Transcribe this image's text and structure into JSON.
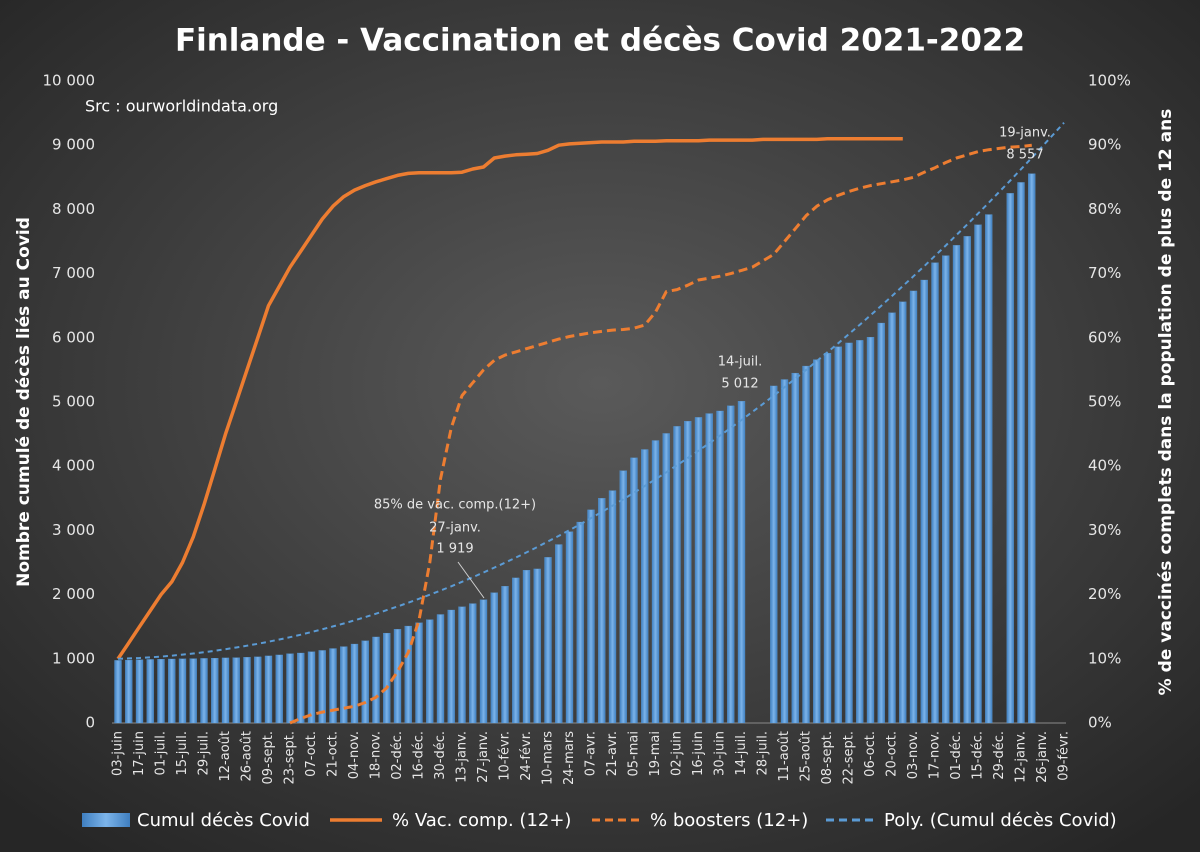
{
  "chart_data": {
    "type": "bar",
    "title": "Finlande - Vaccination et décès Covid 2021-2022",
    "subtitle": "Src : ourworldindata.org",
    "y_label": "Nombre cumulé de décès liés au Covid",
    "y2_label": "% de vaccinés complets dans  la population de plus de 12 ans",
    "categories": [
      "03-juin",
      null,
      "17-juin",
      null,
      "01-juil.",
      null,
      "15-juil.",
      null,
      "29-juil.",
      null,
      "12-août",
      null,
      "26-août",
      null,
      "09-sept.",
      null,
      "23-sept.",
      null,
      "07-oct.",
      null,
      "21-oct.",
      null,
      "04-nov.",
      null,
      "18-nov.",
      null,
      "02-déc.",
      null,
      "16-déc.",
      null,
      "30-déc.",
      null,
      "13-janv.",
      null,
      "27-janv.",
      null,
      "10-févr.",
      null,
      "24-févr.",
      null,
      "10-mars",
      null,
      "24-mars",
      null,
      "07-avr.",
      null,
      "21-avr.",
      null,
      "05-mai",
      null,
      "19-mai",
      null,
      "02-juin",
      null,
      "16-juin",
      null,
      "30-juin",
      null,
      "14-juil.",
      null,
      "28-juil.",
      null,
      "11-août",
      null,
      "25-août",
      null,
      "08-sept.",
      null,
      "22-sept.",
      null,
      "06-oct.",
      null,
      "20-oct.",
      null,
      "03-nov.",
      null,
      "17-nov.",
      null,
      "01-déc.",
      null,
      "15-déc.",
      null,
      "29-déc.",
      null,
      "12-janv.",
      null,
      "26-janv.",
      null,
      "09-févr."
    ],
    "series": [
      {
        "name": "Cumul décès Covid",
        "type": "bar",
        "color": "#5b9bd5",
        "values": [
          975,
          980,
          985,
          990,
          994,
          997,
          1000,
          1003,
          1006,
          1010,
          1014,
          1018,
          1024,
          1030,
          1045,
          1060,
          1080,
          1090,
          1110,
          1130,
          1160,
          1190,
          1230,
          1280,
          1340,
          1400,
          1460,
          1510,
          1560,
          1610,
          1690,
          1760,
          1810,
          1860,
          1919,
          2030,
          2130,
          2260,
          2380,
          2400,
          2580,
          2780,
          2980,
          3130,
          3320,
          3500,
          3620,
          3930,
          4130,
          4260,
          4400,
          4510,
          4620,
          4700,
          4760,
          4820,
          4860,
          4940,
          5012,
          null,
          null,
          5250,
          5350,
          5450,
          5560,
          5660,
          5760,
          5860,
          5920,
          5960,
          6010,
          6230,
          6390,
          6560,
          6730,
          6900,
          7170,
          7280,
          7440,
          7580,
          7760,
          7920,
          null,
          8250,
          8420,
          8557,
          null,
          null,
          null
        ]
      },
      {
        "name": "% Vac. comp. (12+)",
        "type": "line",
        "color": "#ed7d31",
        "dashed": false,
        "axis": "y2",
        "values": [
          10,
          12.5,
          15,
          17.5,
          20,
          22,
          25,
          29,
          34,
          39.5,
          45,
          50,
          55,
          60,
          65,
          68,
          71,
          73.5,
          76,
          78.5,
          80.5,
          82,
          83,
          83.7,
          84.3,
          84.8,
          85.3,
          85.6,
          85.7,
          85.7,
          85.7,
          85.7,
          85.8,
          86.3,
          86.6,
          88,
          88.3,
          88.5,
          88.6,
          88.7,
          89.2,
          90,
          90.2,
          90.3,
          90.4,
          90.5,
          90.5,
          90.5,
          90.6,
          90.6,
          90.6,
          90.7,
          90.7,
          90.7,
          90.7,
          90.8,
          90.8,
          90.8,
          90.8,
          90.8,
          90.9,
          90.9,
          90.9,
          90.9,
          90.9,
          90.9,
          91,
          91,
          91,
          91,
          91,
          91,
          91,
          91,
          null,
          null,
          null,
          null,
          null,
          null,
          null,
          null,
          null,
          null,
          null,
          null,
          null,
          null,
          null
        ]
      },
      {
        "name": "% boosters (12+)",
        "type": "line",
        "color": "#ed7d31",
        "dashed": true,
        "axis": "y2",
        "values": [
          null,
          null,
          null,
          null,
          null,
          null,
          null,
          null,
          null,
          null,
          null,
          null,
          null,
          null,
          null,
          null,
          0,
          0.7,
          1.3,
          1.7,
          2,
          2.3,
          2.6,
          3.2,
          4,
          5.5,
          8,
          11,
          16,
          25,
          38,
          46,
          51,
          53,
          55,
          56.5,
          57.3,
          57.8,
          58.3,
          58.8,
          59.3,
          59.8,
          60.2,
          60.5,
          60.8,
          61,
          61.2,
          61.3,
          61.5,
          62,
          64,
          67.2,
          67.5,
          68.2,
          69,
          69.3,
          69.6,
          70,
          70.5,
          71,
          72,
          73,
          75,
          77,
          79,
          80.5,
          81.5,
          82.2,
          82.8,
          83.3,
          83.7,
          84,
          84.3,
          84.6,
          85,
          85.8,
          86.5,
          87.3,
          88,
          88.5,
          89,
          89.3,
          89.5,
          89.7,
          89.8,
          90,
          null,
          null,
          null
        ]
      },
      {
        "name": "Poly. (Cumul décès Covid)",
        "type": "line",
        "color": "#5b9bd5",
        "dashed": true,
        "values": [
          1000,
          1006,
          1013,
          1023,
          1035,
          1049,
          1065,
          1083,
          1103,
          1125,
          1149,
          1176,
          1204,
          1234,
          1267,
          1301,
          1337,
          1376,
          1417,
          1459,
          1504,
          1550,
          1599,
          1650,
          1703,
          1758,
          1815,
          1874,
          1935,
          1998,
          2063,
          2130,
          2200,
          2271,
          2345,
          2420,
          2497,
          2577,
          2658,
          2742,
          2828,
          2915,
          3005,
          3097,
          3191,
          3287,
          3384,
          3485,
          3587,
          3691,
          3797,
          3905,
          4016,
          4128,
          4242,
          4358,
          4477,
          4597,
          4720,
          4845,
          4971,
          5100,
          5231,
          5364,
          5499,
          5637,
          5775,
          5916,
          6059,
          6204,
          6351,
          6500,
          6651,
          6805,
          6960,
          7117,
          7277,
          7438,
          7602,
          7767,
          7935,
          8104,
          8277,
          8450,
          8626,
          8804,
          8985,
          9166,
          9350
        ]
      }
    ],
    "ylim": [
      0,
      10000
    ],
    "yticks": [
      {
        "value": 0,
        "label": "0"
      },
      {
        "value": 1000,
        "label": "1 000"
      },
      {
        "value": 2000,
        "label": "2 000"
      },
      {
        "value": 3000,
        "label": "3 000"
      },
      {
        "value": 4000,
        "label": "4 000"
      },
      {
        "value": 5000,
        "label": "5 000"
      },
      {
        "value": 6000,
        "label": "6 000"
      },
      {
        "value": 7000,
        "label": "7 000"
      },
      {
        "value": 8000,
        "label": "8 000"
      },
      {
        "value": 9000,
        "label": "9 000"
      },
      {
        "value": 10000,
        "label": "10 000"
      }
    ],
    "y2lim": [
      0,
      100
    ],
    "y2ticks": [
      {
        "value": 0,
        "label": "0%"
      },
      {
        "value": 10,
        "label": "10%"
      },
      {
        "value": 20,
        "label": "20%"
      },
      {
        "value": 30,
        "label": "30%"
      },
      {
        "value": 40,
        "label": "40%"
      },
      {
        "value": 50,
        "label": "50%"
      },
      {
        "value": 60,
        "label": "60%"
      },
      {
        "value": 70,
        "label": "70%"
      },
      {
        "value": 80,
        "label": "80%"
      },
      {
        "value": 90,
        "label": "90%"
      },
      {
        "value": 100,
        "label": "100%"
      }
    ],
    "grid": false,
    "legend": "bottom",
    "annotations": [
      "85% de vac. comp.(12+)",
      "27-janv.",
      "1 919",
      "14-juil.",
      "5 012",
      "19-janv.",
      "8 557"
    ]
  }
}
